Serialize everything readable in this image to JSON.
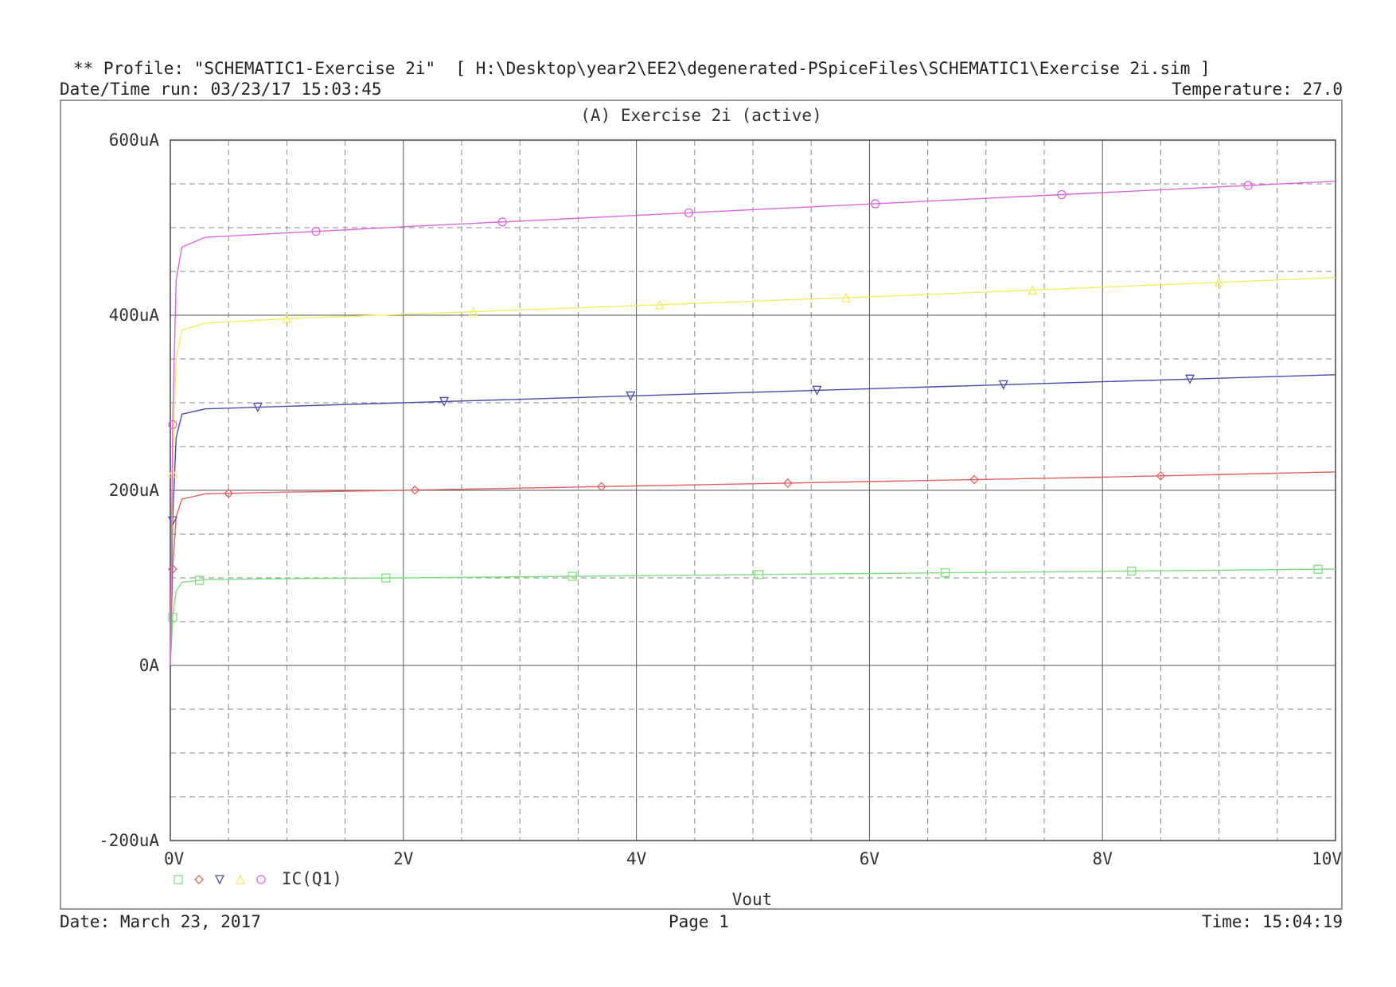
{
  "header": {
    "profile_line": "** Profile: \"SCHEMATIC1-Exercise 2i\"  [ H:\\Desktop\\year2\\EE2\\degenerated-PSpiceFiles\\SCHEMATIC1\\Exercise 2i.sim ]",
    "datetime_run": "Date/Time run: 03/23/17 15:03:45",
    "temperature": "Temperature: 27.0"
  },
  "footer": {
    "date": "Date: March 23, 2017",
    "page": "Page 1",
    "time": "Time: 15:04:19"
  },
  "chart_data": {
    "type": "line",
    "title": "(A) Exercise 2i (active)",
    "xlabel": "Vout",
    "ylabel": "",
    "xlim": [
      0,
      10
    ],
    "ylim": [
      -200,
      600
    ],
    "x_unit": "V",
    "y_unit": "uA",
    "x_ticks": [
      "0V",
      "2V",
      "4V",
      "6V",
      "8V",
      "10V"
    ],
    "y_ticks": [
      "-200uA",
      "0A",
      "200uA",
      "400uA",
      "600uA"
    ],
    "grid": true,
    "legend_label": "IC(Q1)",
    "legend_placement": "bottom-left",
    "series": [
      {
        "marker": "square",
        "color": "#7ee07e",
        "values": [
          [
            0,
            0
          ],
          [
            0.02,
            55
          ],
          [
            0.05,
            85
          ],
          [
            0.1,
            95
          ],
          [
            0.3,
            98
          ],
          [
            1,
            99
          ],
          [
            2,
            100
          ],
          [
            4,
            102.5
          ],
          [
            6,
            105
          ],
          [
            8,
            107.5
          ],
          [
            10,
            110
          ]
        ]
      },
      {
        "marker": "diamond",
        "color": "#e06060",
        "values": [
          [
            0,
            0
          ],
          [
            0.02,
            110
          ],
          [
            0.05,
            170
          ],
          [
            0.1,
            190
          ],
          [
            0.3,
            196
          ],
          [
            1,
            198
          ],
          [
            2,
            200
          ],
          [
            4,
            205
          ],
          [
            6,
            210
          ],
          [
            8,
            215
          ],
          [
            10,
            221
          ]
        ]
      },
      {
        "marker": "triangle",
        "color": "#4a4aaa",
        "values": [
          [
            0,
            0
          ],
          [
            0.02,
            165
          ],
          [
            0.05,
            260
          ],
          [
            0.1,
            287
          ],
          [
            0.3,
            293
          ],
          [
            1,
            296
          ],
          [
            2,
            300
          ],
          [
            4,
            308
          ],
          [
            6,
            316
          ],
          [
            8,
            324
          ],
          [
            10,
            332
          ]
        ]
      },
      {
        "marker": "triangle-up",
        "color": "#f2ee60",
        "values": [
          [
            0,
            0
          ],
          [
            0.02,
            220
          ],
          [
            0.05,
            350
          ],
          [
            0.1,
            383
          ],
          [
            0.3,
            391
          ],
          [
            1,
            396
          ],
          [
            2,
            401
          ],
          [
            4,
            411
          ],
          [
            6,
            421
          ],
          [
            8,
            432
          ],
          [
            10,
            443
          ]
        ]
      },
      {
        "marker": "circle",
        "color": "#dd66dd",
        "values": [
          [
            0,
            0
          ],
          [
            0.02,
            275
          ],
          [
            0.05,
            440
          ],
          [
            0.1,
            478
          ],
          [
            0.3,
            489
          ],
          [
            1,
            494
          ],
          [
            2,
            501
          ],
          [
            4,
            514
          ],
          [
            6,
            527
          ],
          [
            8,
            540
          ],
          [
            10,
            553
          ]
        ]
      }
    ]
  }
}
